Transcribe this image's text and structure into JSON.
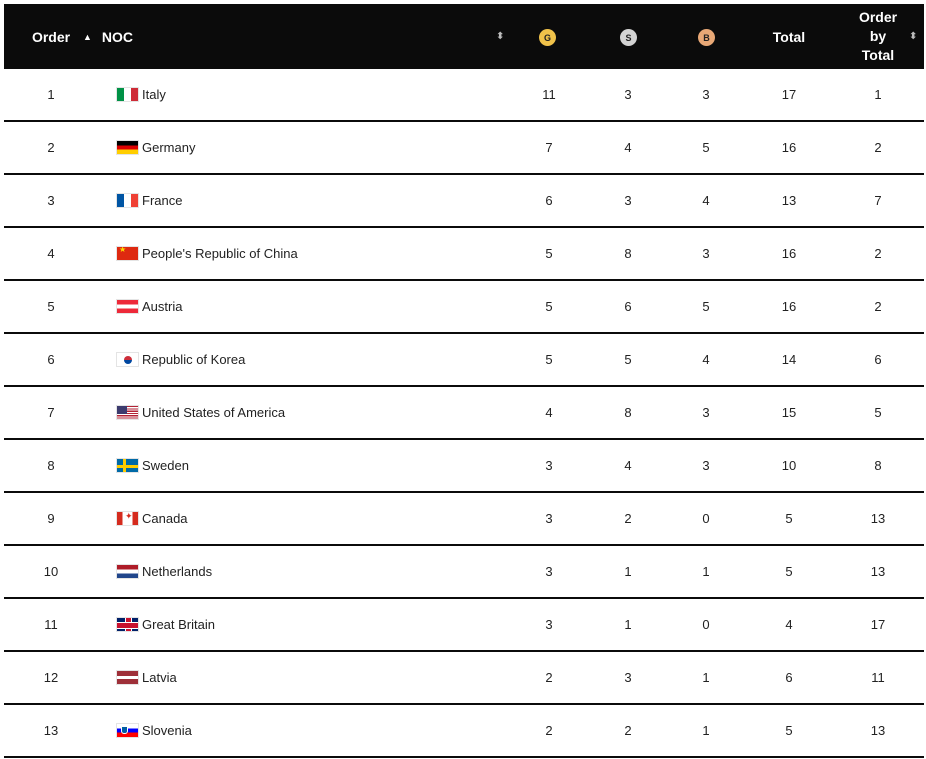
{
  "header": {
    "order": "Order",
    "noc": "NOC",
    "caret": "▲",
    "sort_glyph": "⬍",
    "gold": "G",
    "silver": "S",
    "bronze": "B",
    "total": "Total",
    "order_by_total_lines": [
      "Order",
      "by",
      "Total"
    ]
  },
  "colors": {
    "header_bg": "#0b0b0b",
    "gold_badge": "#f0c24a",
    "silver_badge": "#d3d3d3",
    "bronze_badge": "#e8a876"
  },
  "rows": [
    {
      "order": "1",
      "flag": "flag-italy-icon",
      "noc": "Italy",
      "g": "11",
      "s": "3",
      "b": "3",
      "total": "17",
      "order_by_total": "1"
    },
    {
      "order": "2",
      "flag": "flag-germany-icon",
      "noc": "Germany",
      "g": "7",
      "s": "4",
      "b": "5",
      "total": "16",
      "order_by_total": "2"
    },
    {
      "order": "3",
      "flag": "flag-france-icon",
      "noc": "France",
      "g": "6",
      "s": "3",
      "b": "4",
      "total": "13",
      "order_by_total": "7"
    },
    {
      "order": "4",
      "flag": "flag-china-icon",
      "noc": "People's Republic of China",
      "g": "5",
      "s": "8",
      "b": "3",
      "total": "16",
      "order_by_total": "2"
    },
    {
      "order": "5",
      "flag": "flag-austria-icon",
      "noc": "Austria",
      "g": "5",
      "s": "6",
      "b": "5",
      "total": "16",
      "order_by_total": "2"
    },
    {
      "order": "6",
      "flag": "flag-korea-icon",
      "noc": "Republic of Korea",
      "g": "5",
      "s": "5",
      "b": "4",
      "total": "14",
      "order_by_total": "6"
    },
    {
      "order": "7",
      "flag": "flag-usa-icon",
      "noc": "United States of America",
      "g": "4",
      "s": "8",
      "b": "3",
      "total": "15",
      "order_by_total": "5"
    },
    {
      "order": "8",
      "flag": "flag-sweden-icon",
      "noc": "Sweden",
      "g": "3",
      "s": "4",
      "b": "3",
      "total": "10",
      "order_by_total": "8"
    },
    {
      "order": "9",
      "flag": "flag-canada-icon",
      "noc": "Canada",
      "g": "3",
      "s": "2",
      "b": "0",
      "total": "5",
      "order_by_total": "13"
    },
    {
      "order": "10",
      "flag": "flag-netherlands-icon",
      "noc": "Netherlands",
      "g": "3",
      "s": "1",
      "b": "1",
      "total": "5",
      "order_by_total": "13"
    },
    {
      "order": "11",
      "flag": "flag-great-britain-icon",
      "noc": "Great Britain",
      "g": "3",
      "s": "1",
      "b": "0",
      "total": "4",
      "order_by_total": "17"
    },
    {
      "order": "12",
      "flag": "flag-latvia-icon",
      "noc": "Latvia",
      "g": "2",
      "s": "3",
      "b": "1",
      "total": "6",
      "order_by_total": "11"
    },
    {
      "order": "13",
      "flag": "flag-slovenia-icon",
      "noc": "Slovenia",
      "g": "2",
      "s": "2",
      "b": "1",
      "total": "5",
      "order_by_total": "13"
    }
  ]
}
